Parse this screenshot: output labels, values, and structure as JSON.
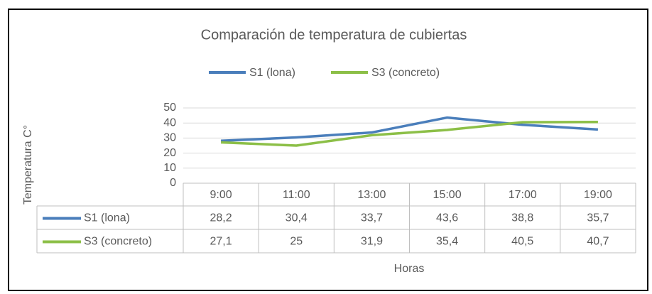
{
  "chart_data": {
    "type": "line",
    "title": "Comparación  de temperatura de cubiertas",
    "y_label": "Temperatura  C°",
    "x_label": "Horas",
    "categories": [
      "9:00",
      "11:00",
      "13:00",
      "15:00",
      "17:00",
      "19:00"
    ],
    "series": [
      {
        "name": "S1 (lona)",
        "color": "#4a7ebb",
        "values": [
          28.2,
          30.4,
          33.7,
          43.6,
          38.8,
          35.7
        ],
        "value_labels": [
          "28,2",
          "30,4",
          "33,7",
          "43,6",
          "38,8",
          "35,7"
        ]
      },
      {
        "name": "S3 (concreto)",
        "color": "#8cbf47",
        "values": [
          27.1,
          25,
          31.9,
          35.4,
          40.5,
          40.7
        ],
        "value_labels": [
          "27,1",
          "25",
          "31,9",
          "35,4",
          "40,5",
          "40,7"
        ]
      }
    ],
    "ylim": [
      0,
      50
    ],
    "yticks": [
      0,
      10,
      20,
      30,
      40,
      50
    ],
    "grid": true,
    "legend": "top"
  }
}
